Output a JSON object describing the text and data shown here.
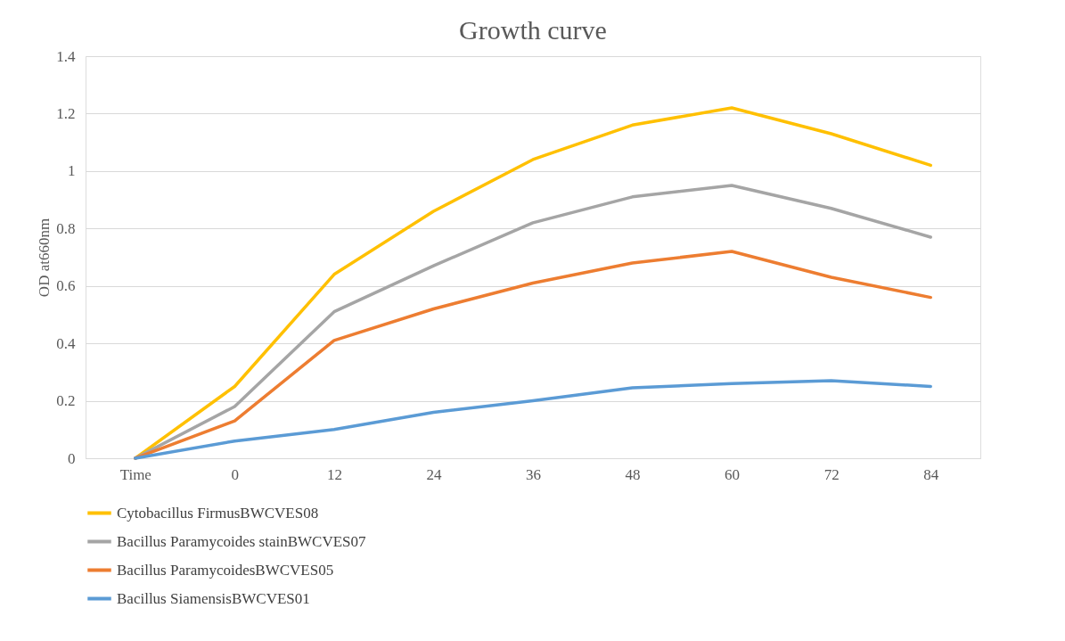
{
  "chart_data": {
    "type": "line",
    "title": "Growth curve",
    "ylabel": "OD  at660nm",
    "categories": [
      "Time",
      "0",
      "12",
      "24",
      "36",
      "48",
      "60",
      "72",
      "84"
    ],
    "series": [
      {
        "name": "Cytobacillus FirmusBWCVES08",
        "color": "#ffc000",
        "values": [
          0,
          0.25,
          0.64,
          0.86,
          1.04,
          1.16,
          1.22,
          1.13,
          1.02
        ]
      },
      {
        "name": "Bacillus Paramycoides  stainBWCVES07",
        "color": "#a5a5a5",
        "values": [
          0,
          0.18,
          0.51,
          0.67,
          0.82,
          0.91,
          0.95,
          0.87,
          0.77
        ]
      },
      {
        "name": "Bacillus ParamycoidesBWCVES05",
        "color": "#ed7d31",
        "values": [
          0,
          0.13,
          0.41,
          0.52,
          0.61,
          0.68,
          0.72,
          0.63,
          0.56
        ]
      },
      {
        "name": "Bacillus SiamensisBWCVES01",
        "color": "#5b9bd5",
        "values": [
          0,
          0.06,
          0.1,
          0.16,
          0.2,
          0.245,
          0.26,
          0.27,
          0.25
        ]
      }
    ],
    "ylim": [
      0,
      1.4
    ],
    "yticks": [
      0,
      0.2,
      0.4,
      0.6,
      0.8,
      1,
      1.2,
      1.4
    ],
    "grid": "y",
    "legend": "bottom",
    "marker": "none",
    "line_style": "solid"
  }
}
